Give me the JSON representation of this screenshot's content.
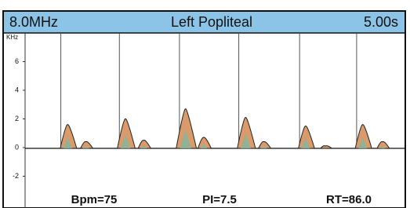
{
  "header": [
    "8.0MHz",
    "Left Popliteal",
    "5.00s"
  ],
  "footer": [
    "Bpm=75",
    "PI=7.5",
    "RT=86.0"
  ],
  "chart_data": {
    "type": "doppler",
    "y_label": "KHz",
    "xlim": [
      0,
      5
    ],
    "ylim": [
      -4,
      8
    ],
    "yticks": [
      6,
      4,
      2,
      0,
      -2
    ],
    "markers": [
      0.47,
      1.24,
      2.03,
      2.81,
      3.61,
      4.36
    ],
    "x": [
      0.56,
      0.8,
      1.32,
      1.56,
      2.11,
      2.35,
      2.9,
      3.14,
      3.69,
      3.95,
      4.44,
      4.7
    ],
    "values": [
      1.6,
      0.4,
      2.0,
      0.5,
      2.7,
      0.7,
      2.1,
      0.4,
      1.5,
      0.1,
      1.6,
      0.4
    ],
    "color": "#d99a6c"
  }
}
